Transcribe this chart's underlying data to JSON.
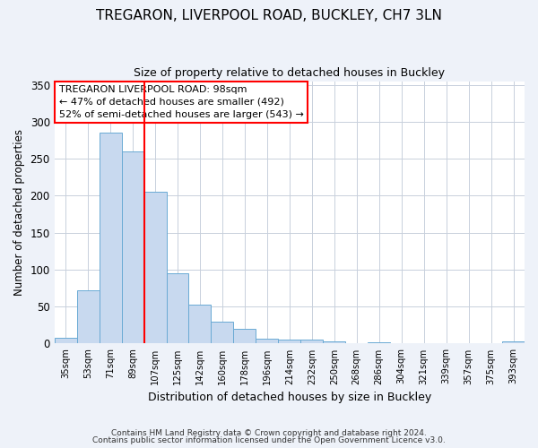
{
  "title": "TREGARON, LIVERPOOL ROAD, BUCKLEY, CH7 3LN",
  "subtitle": "Size of property relative to detached houses in Buckley",
  "xlabel": "Distribution of detached houses by size in Buckley",
  "ylabel": "Number of detached properties",
  "bar_labels": [
    "35sqm",
    "53sqm",
    "71sqm",
    "89sqm",
    "107sqm",
    "125sqm",
    "142sqm",
    "160sqm",
    "178sqm",
    "196sqm",
    "214sqm",
    "232sqm",
    "250sqm",
    "268sqm",
    "286sqm",
    "304sqm",
    "321sqm",
    "339sqm",
    "357sqm",
    "375sqm",
    "393sqm"
  ],
  "bar_values": [
    8,
    72,
    285,
    260,
    205,
    95,
    53,
    30,
    20,
    7,
    5,
    5,
    3,
    0,
    2,
    1,
    0,
    0,
    1,
    0,
    3
  ],
  "bar_color": "#c8d9ef",
  "bar_edge_color": "#6aaad4",
  "ylim": [
    0,
    355
  ],
  "yticks": [
    0,
    50,
    100,
    150,
    200,
    250,
    300,
    350
  ],
  "annotation_title": "TREGARON LIVERPOOL ROAD: 98sqm",
  "annotation_line1": "← 47% of detached houses are smaller (492)",
  "annotation_line2": "52% of semi-detached houses are larger (543) →",
  "footnote1": "Contains HM Land Registry data © Crown copyright and database right 2024.",
  "footnote2": "Contains public sector information licensed under the Open Government Licence v3.0.",
  "bg_color": "#eef2f9",
  "plot_bg_color": "#ffffff",
  "grid_color": "#c8d0dc"
}
